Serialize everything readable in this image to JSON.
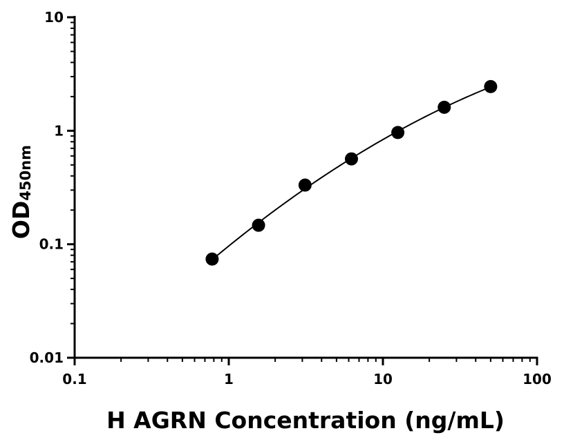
{
  "chart_data": {
    "type": "scatter",
    "xlabel": "H AGRN Concentration (ng/mL)",
    "ylabel_main": "OD",
    "ylabel_sub": "450nm",
    "x_scale": "log",
    "y_scale": "log",
    "xlim": [
      0.1,
      100
    ],
    "ylim": [
      0.01,
      10
    ],
    "x_ticks": [
      0.1,
      1,
      10,
      100
    ],
    "x_tick_labels": [
      "0.1",
      "1",
      "10",
      "100"
    ],
    "y_ticks": [
      0.01,
      0.1,
      1,
      10
    ],
    "y_tick_labels": [
      "0.01",
      "0.1",
      "1",
      "10"
    ],
    "grid": false,
    "series": [
      {
        "x": [
          0.78,
          1.56,
          3.125,
          6.25,
          12.5,
          25,
          50
        ],
        "y": [
          0.074,
          0.147,
          0.332,
          0.565,
          0.965,
          1.61,
          2.45
        ],
        "marker": "circle",
        "fit_curve": true,
        "color": "#000000"
      }
    ]
  }
}
